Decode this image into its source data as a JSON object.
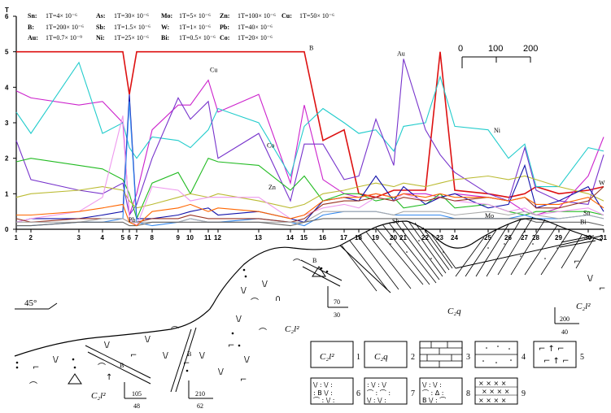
{
  "chart_data": {
    "type": "line",
    "ylabel": "T",
    "ylim": [
      0,
      6
    ],
    "y_ticks": [
      "0",
      "1",
      "2",
      "3",
      "4",
      "5",
      "6"
    ],
    "x_ticks": [
      "1",
      "2",
      "3",
      "4",
      "5",
      "6",
      "7",
      "8",
      "9",
      "10",
      "11",
      "12",
      "13",
      "14",
      "15",
      "16",
      "17",
      "18",
      "19",
      "20",
      "21",
      "22",
      "23",
      "24",
      "25",
      "26",
      "27",
      "28",
      "29",
      "30",
      "31"
    ],
    "units_legend": [
      {
        "el": "Sn:",
        "val": "1T=4× 10⁻⁶"
      },
      {
        "el": "As:",
        "val": "1T=30× 10⁻⁶"
      },
      {
        "el": "Mo:",
        "val": "1T=5× 10⁻⁶"
      },
      {
        "el": "Zn:",
        "val": "1T=100× 10⁻⁶"
      },
      {
        "el": "Cu:",
        "val": "1T=50× 10⁻⁶"
      },
      {
        "el": "B:",
        "val": "1T=200× 10⁻⁶"
      },
      {
        "el": "Sb:",
        "val": "1T=1.5× 10⁻⁶"
      },
      {
        "el": "W:",
        "val": "1T=1× 10⁻⁶"
      },
      {
        "el": "Pb:",
        "val": "1T=40× 10⁻⁶"
      },
      {
        "el": "Au:",
        "val": "1T=0.7× 10⁻⁹"
      },
      {
        "el": "Ni:",
        "val": "1T=25× 10⁻⁶"
      },
      {
        "el": "Bi:",
        "val": "1T=0.5× 10⁻⁶"
      },
      {
        "el": "Co:",
        "val": "1T=20× 10⁻⁶"
      }
    ],
    "scale_bar": {
      "labels": [
        "0",
        "100",
        "200"
      ]
    },
    "series": [
      {
        "name": "B",
        "color": "#dd1111",
        "values": [
          5,
          5,
          5,
          5,
          5,
          3.8,
          5,
          5,
          5,
          5,
          5,
          5,
          5,
          5,
          5,
          2.5,
          2.8,
          1.0,
          0.9,
          1.1,
          1.1,
          1.1,
          5.0,
          1.1,
          1.0,
          0.9,
          1.0,
          1.2,
          1.0,
          1.1,
          1.2
        ]
      },
      {
        "name": "Cu",
        "color": "#cc22cc",
        "values": [
          3.9,
          3.7,
          3.5,
          3.6,
          3.0,
          0.4,
          1.0,
          2.8,
          3.5,
          3.5,
          4.2,
          3.3,
          3.8,
          1.3,
          3.5,
          1.4,
          1.0,
          0.9,
          1.0,
          0.9,
          1.0,
          1.0,
          0.9,
          1.0,
          0.9,
          0.8,
          0.5,
          0.4,
          0.6,
          1.5,
          2.6
        ]
      },
      {
        "name": "Ni",
        "color": "#22cccc",
        "values": [
          3.3,
          2.7,
          4.7,
          2.7,
          3.0,
          2.3,
          2.0,
          2.6,
          2.5,
          2.3,
          2.8,
          3.4,
          3.0,
          1.5,
          2.9,
          3.4,
          3.0,
          2.7,
          2.8,
          2.2,
          2.9,
          3.0,
          4.3,
          2.9,
          2.8,
          2.0,
          2.4,
          1.2,
          1.2,
          2.3,
          2.2
        ]
      },
      {
        "name": "Au",
        "color": "#7733cc",
        "values": [
          2.5,
          1.4,
          1.1,
          1.0,
          1.3,
          0.4,
          0.7,
          2.0,
          3.7,
          3.1,
          3.6,
          2.0,
          2.7,
          0.8,
          2.4,
          2.4,
          1.4,
          1.5,
          3.1,
          1.8,
          4.8,
          2.8,
          2.1,
          1.6,
          1.0,
          0.8,
          2.3,
          1.1,
          0.8,
          0.7,
          2.1
        ]
      },
      {
        "name": "Co",
        "color": "#22bb22",
        "values": [
          1.9,
          2.0,
          1.8,
          1.7,
          1.4,
          1.0,
          0.3,
          1.3,
          1.6,
          1.0,
          2.0,
          1.9,
          1.8,
          1.1,
          1.5,
          0.8,
          1.0,
          1.0,
          0.8,
          0.9,
          0.6,
          0.7,
          1.0,
          0.6,
          0.7,
          0.5,
          0.4,
          0.5,
          0.5,
          0.5,
          0.4
        ]
      },
      {
        "name": "Zn",
        "color": "#bbbb33",
        "values": [
          0.9,
          1.0,
          1.1,
          1.2,
          1.1,
          0.8,
          0.6,
          0.7,
          0.9,
          1.0,
          0.9,
          1.0,
          0.8,
          0.6,
          0.7,
          1.0,
          1.1,
          1.2,
          1.3,
          1.2,
          1.3,
          1.2,
          1.3,
          1.4,
          1.5,
          1.4,
          1.5,
          1.4,
          1.2,
          1.0,
          0.8
        ]
      },
      {
        "name": "Mo",
        "color": "#1111aa",
        "values": [
          0.2,
          0.3,
          0.3,
          0.4,
          0.5,
          3.8,
          0.3,
          0.3,
          0.4,
          0.5,
          0.6,
          0.4,
          0.5,
          0.3,
          0.2,
          0.8,
          0.9,
          0.8,
          1.5,
          0.8,
          1.2,
          0.7,
          0.9,
          1.0,
          0.6,
          0.7,
          1.8,
          0.6,
          0.8,
          1.2,
          0.5
        ]
      },
      {
        "name": "Pb",
        "color": "#ee99ee",
        "values": [
          0.2,
          0.3,
          0.5,
          0.9,
          3.2,
          0.3,
          0.1,
          1.2,
          1.1,
          0.8,
          0.9,
          0.9,
          0.9,
          0.3,
          0.4,
          0.6,
          0.7,
          0.6,
          0.9,
          0.8,
          1.0,
          0.8,
          0.9,
          0.8,
          0.7,
          0.5,
          0.6,
          0.4,
          0.5,
          0.6,
          0.4
        ]
      },
      {
        "name": "Sb",
        "color": "#3388ee",
        "values": [
          0.1,
          0.1,
          0.2,
          0.2,
          0.3,
          3.6,
          0.2,
          0.1,
          0.2,
          0.3,
          0.2,
          0.2,
          0.3,
          0.2,
          0.1,
          0.4,
          0.5,
          0.5,
          0.5,
          0.4,
          0.4,
          0.4,
          0.4,
          0.3,
          0.3,
          0.3,
          0.4,
          0.3,
          0.3,
          0.4,
          0.3
        ]
      },
      {
        "name": "W",
        "color": "#993322",
        "values": [
          0.3,
          0.2,
          0.3,
          0.3,
          0.3,
          0.2,
          0.2,
          0.3,
          0.3,
          0.4,
          0.3,
          0.3,
          0.3,
          0.2,
          0.3,
          0.7,
          0.8,
          0.8,
          0.9,
          0.8,
          0.9,
          0.8,
          0.9,
          0.8,
          0.9,
          0.8,
          0.9,
          0.6,
          0.6,
          0.8,
          1.2
        ]
      },
      {
        "name": "Sn",
        "color": "#aaaaaa",
        "values": [
          0.2,
          0.2,
          0.2,
          0.3,
          0.3,
          0.2,
          0.2,
          0.2,
          0.2,
          0.3,
          0.2,
          0.2,
          0.2,
          0.2,
          0.2,
          0.5,
          0.5,
          0.5,
          0.5,
          0.4,
          0.5,
          0.5,
          0.5,
          0.4,
          0.5,
          0.4,
          0.5,
          0.4,
          0.3,
          0.4,
          0.3
        ]
      },
      {
        "name": "Bi",
        "color": "#666666",
        "values": [
          0.1,
          0.1,
          0.2,
          0.2,
          0.2,
          0.1,
          0.1,
          0.2,
          0.2,
          0.2,
          0.2,
          0.2,
          0.2,
          0.1,
          0.2,
          0.3,
          0.3,
          0.3,
          0.3,
          0.3,
          0.3,
          0.3,
          0.3,
          0.3,
          0.3,
          0.3,
          0.3,
          0.2,
          0.2,
          0.2,
          0.1
        ]
      },
      {
        "name": "As",
        "color": "#ff6600",
        "values": [
          0.4,
          0.4,
          0.5,
          0.6,
          0.7,
          0.2,
          0.1,
          0.5,
          0.6,
          0.7,
          0.5,
          0.6,
          0.5,
          0.3,
          0.4,
          0.8,
          0.9,
          0.9,
          1.0,
          0.9,
          1.0,
          0.9,
          1.0,
          0.9,
          0.9,
          0.8,
          0.9,
          0.7,
          0.7,
          0.9,
          0.6
        ]
      }
    ],
    "point_labels": [
      {
        "text": "B",
        "series": "B"
      },
      {
        "text": "Au",
        "series": "Au"
      },
      {
        "text": "Cu",
        "series": "Cu"
      },
      {
        "text": "Ni",
        "series": "Ni"
      },
      {
        "text": "Co",
        "series": "Co"
      },
      {
        "text": "Zn",
        "series": "Zn"
      },
      {
        "text": "Mo",
        "series": "Mo"
      },
      {
        "text": "Sb",
        "series": "Sb"
      },
      {
        "text": "W",
        "series": "W"
      },
      {
        "text": "Sn",
        "series": "Sn"
      },
      {
        "text": "Bi",
        "series": "Bi"
      },
      {
        "text": "Pb",
        "series": "Pb"
      }
    ]
  },
  "section": {
    "dip_label": "45°",
    "units": {
      "c2l2": "C₂l²",
      "c2q": "C₂q"
    },
    "attitudes": [
      {
        "az": "105",
        "dip": "48"
      },
      {
        "az": "210",
        "dip": "62"
      },
      {
        "az": "70",
        "dip": "30"
      },
      {
        "az": "200",
        "dip": "40"
      }
    ],
    "legend_numbers": [
      "1",
      "2",
      "3",
      "4",
      "5",
      "6",
      "7",
      "8",
      "9"
    ],
    "b_marker": "B"
  }
}
